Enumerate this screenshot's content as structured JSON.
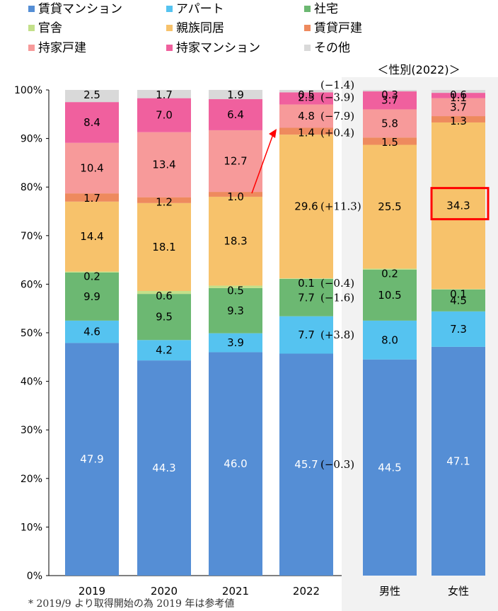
{
  "chart_data": {
    "type": "bar",
    "stacked": true,
    "percent_axis": true,
    "ylim": [
      0,
      100
    ],
    "yticks": [
      "0%",
      "10%",
      "20%",
      "30%",
      "40%",
      "50%",
      "60%",
      "70%",
      "80%",
      "90%",
      "100%"
    ],
    "categories": [
      "2019",
      "2020",
      "2021",
      "2022"
    ],
    "gender_title": "＜性別(2022)＞",
    "gender_categories": [
      "男性",
      "女性"
    ],
    "series": [
      {
        "name": "賃貸マンション",
        "color": "#558ed5",
        "values": [
          47.9,
          44.3,
          46.0,
          45.7
        ],
        "gender_values": [
          44.5,
          47.1
        ]
      },
      {
        "name": "アパート",
        "color": "#55c3f0",
        "values": [
          4.6,
          4.2,
          3.9,
          7.7
        ],
        "gender_values": [
          8.0,
          7.3
        ]
      },
      {
        "name": "社宅",
        "color": "#6cb872",
        "values": [
          9.9,
          9.5,
          9.3,
          7.7
        ],
        "gender_values": [
          10.5,
          4.5
        ]
      },
      {
        "name": "官舎",
        "color": "#c3e08a",
        "values": [
          0.2,
          0.6,
          0.5,
          0.1
        ],
        "gender_values": [
          0.2,
          0.1
        ]
      },
      {
        "name": "親族同居",
        "color": "#f7c26b",
        "values": [
          14.4,
          18.1,
          18.3,
          29.6
        ],
        "gender_values": [
          25.5,
          34.3
        ]
      },
      {
        "name": "賃貸戸建",
        "color": "#ee8a5e",
        "values": [
          1.7,
          1.2,
          1.0,
          1.4
        ],
        "gender_values": [
          1.5,
          1.3
        ]
      },
      {
        "name": "持家戸建",
        "color": "#f79a9a",
        "values": [
          10.4,
          13.4,
          12.7,
          4.8
        ],
        "gender_values": [
          5.8,
          3.7
        ]
      },
      {
        "name": "持家マンション",
        "color": "#f0609e",
        "values": [
          8.4,
          7.0,
          6.4,
          2.5
        ],
        "gender_values": [
          3.7,
          1.1
        ]
      },
      {
        "name": "その他",
        "color": "#d9d9d9",
        "values": [
          2.5,
          1.7,
          1.9,
          0.5
        ],
        "gender_values": [
          0.3,
          0.6
        ]
      }
    ],
    "changes_2022": [
      "(−0.3)",
      "(+3.8)",
      "(−1.6)",
      "(−0.4)",
      "(+11.3)",
      "(+0.4)",
      "(−7.9)",
      "(−3.9)",
      "(−1.4)"
    ],
    "annotations": {
      "arrow": "2021 賃貸戸建 → 2022 賃貸戸建",
      "highlight_box": "女性 親族同居 34.3"
    },
    "note": "* 2019/9 より取得開始の為 2019 年は参考値"
  }
}
